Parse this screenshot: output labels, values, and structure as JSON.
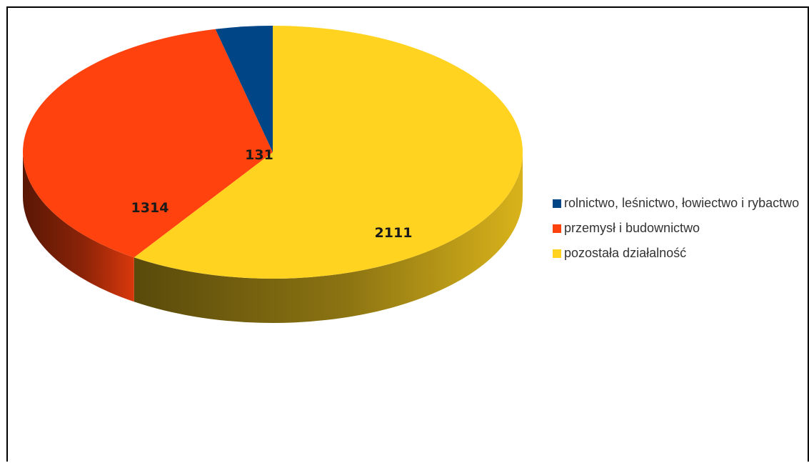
{
  "chart_data": {
    "type": "pie",
    "style": "3d",
    "slices": [
      {
        "label": "rolnictwo, leśnictwo, łowiectwo i rybactwo",
        "value": 131,
        "color": "#004586"
      },
      {
        "label": "przemysł i budownictwo",
        "value": 1314,
        "color": "#ff420e"
      },
      {
        "label": "pozostała działalność",
        "value": 2111,
        "color": "#ffd320"
      }
    ],
    "legend_position": "right",
    "data_labels": "value"
  }
}
